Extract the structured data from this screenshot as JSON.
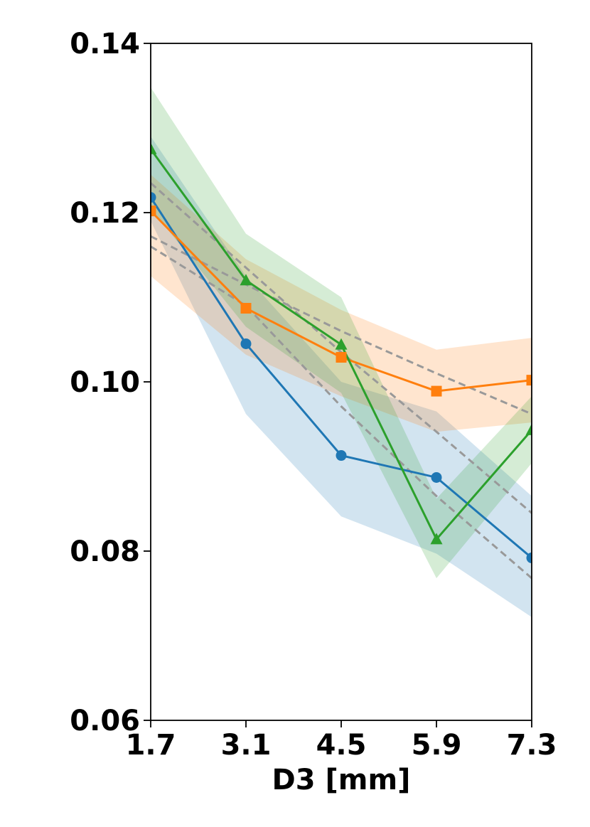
{
  "chart_data": {
    "type": "line",
    "title": "",
    "xlabel": "D3 [mm]",
    "ylabel": "",
    "x": [
      1.7,
      3.1,
      4.5,
      5.9,
      7.3
    ],
    "xlim": [
      1.7,
      7.3
    ],
    "ylim": [
      0.06,
      0.14
    ],
    "x_ticks": [
      "1.7",
      "3.1",
      "4.5",
      "5.9",
      "7.3"
    ],
    "y_ticks": [
      "0.06",
      "0.08",
      "0.10",
      "0.12",
      "0.14"
    ],
    "grid": false,
    "legend": "none",
    "series": [
      {
        "color": "#1f77b4",
        "marker": "circle",
        "values": [
          0.1218,
          0.1045,
          0.0913,
          0.0887,
          0.0792
        ],
        "band_upper": [
          0.129,
          0.1125,
          0.1,
          0.0965,
          0.0865
        ],
        "band_lower": [
          0.119,
          0.0962,
          0.0841,
          0.0797,
          0.0722
        ]
      },
      {
        "color": "#ff7f0e",
        "marker": "square",
        "values": [
          0.1202,
          0.1087,
          0.1029,
          0.0989,
          0.1002
        ],
        "band_upper": [
          0.1245,
          0.1145,
          0.1085,
          0.1038,
          0.1052
        ],
        "band_lower": [
          0.1125,
          0.1032,
          0.0983,
          0.0941,
          0.0952
        ]
      },
      {
        "color": "#2ca02c",
        "marker": "triangle",
        "values": [
          0.1275,
          0.112,
          0.1044,
          0.0814,
          0.0943
        ],
        "band_upper": [
          0.1348,
          0.1175,
          0.11,
          0.0862,
          0.0983
        ],
        "band_lower": [
          0.1205,
          0.1065,
          0.0987,
          0.0768,
          0.0904
        ]
      }
    ],
    "reference_lines": {
      "color": "#999999",
      "style": "dashed",
      "lines": [
        [
          0.1235,
          0.1135,
          0.1035,
          0.0941,
          0.0845
        ],
        [
          0.116,
          0.109,
          0.0971,
          0.0865,
          0.0768
        ],
        [
          0.1172,
          0.1115,
          0.106,
          0.101,
          0.0962
        ]
      ]
    }
  }
}
